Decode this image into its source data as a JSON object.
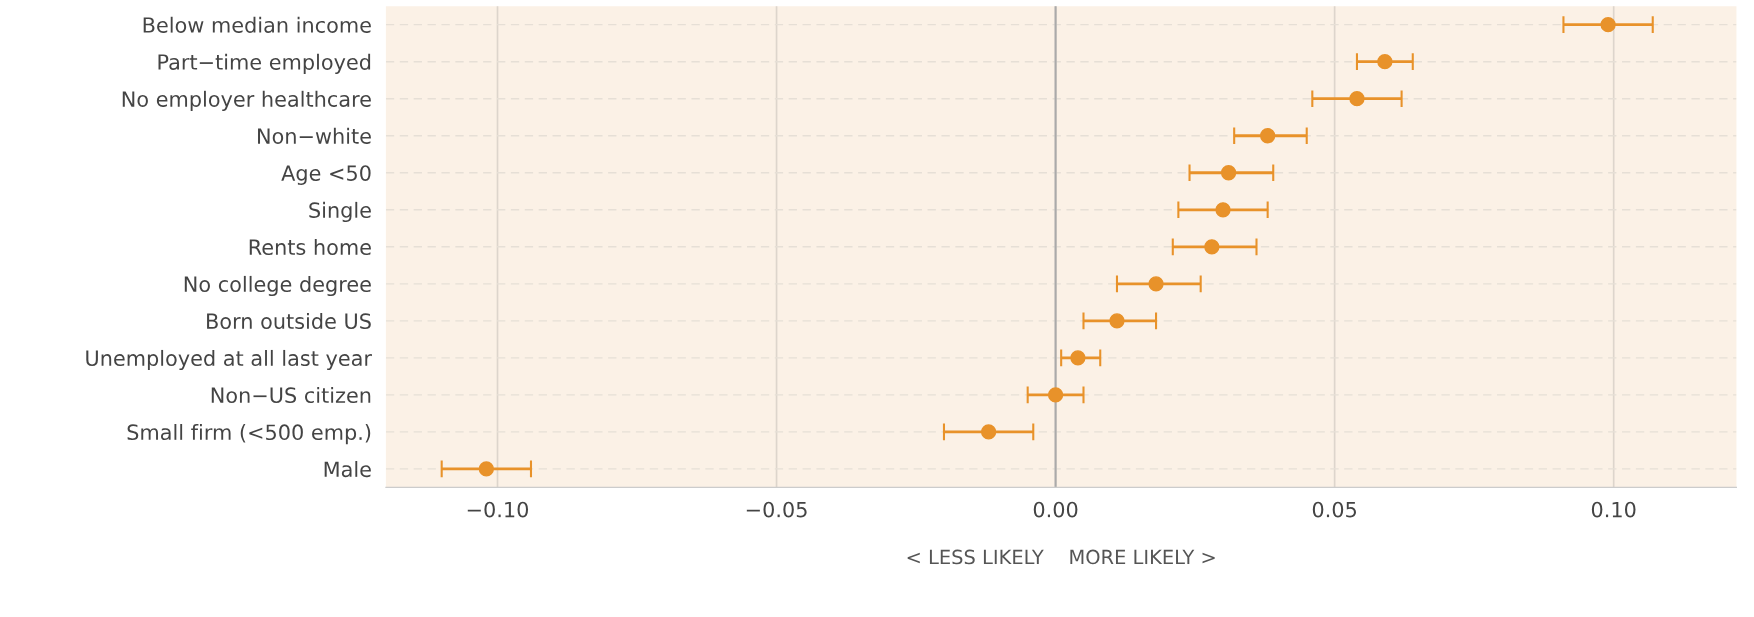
{
  "chart_data": {
    "type": "scatter",
    "xlabel": "< LESS LIKELY    MORE LIKELY >",
    "orientation": "horizontal",
    "categories": [
      "Below median income",
      "Part−time employed",
      "No employer healthcare",
      "Non−white",
      "Age <50",
      "Single",
      "Rents home",
      "No college degree",
      "Born outside US",
      "Unemployed at all last year",
      "Non−US citizen",
      "Small firm (<500 emp.)",
      "Male"
    ],
    "series": [
      {
        "color": "#e8922a",
        "values": [
          0.099,
          0.059,
          0.054,
          0.038,
          0.031,
          0.03,
          0.028,
          0.018,
          0.011,
          0.004,
          0.0,
          -0.012,
          -0.102
        ],
        "errors": [
          [
            0.091,
            0.107
          ],
          [
            0.054,
            0.064
          ],
          [
            0.046,
            0.062
          ],
          [
            0.032,
            0.045
          ],
          [
            0.024,
            0.039
          ],
          [
            0.022,
            0.038
          ],
          [
            0.021,
            0.036
          ],
          [
            0.011,
            0.026
          ],
          [
            0.005,
            0.018
          ],
          [
            0.001,
            0.008
          ],
          [
            -0.005,
            0.005
          ],
          [
            -0.02,
            -0.004
          ],
          [
            -0.11,
            -0.094
          ]
        ]
      }
    ],
    "xlim": [
      -0.12,
      0.122
    ],
    "xticks": [
      {
        "value": -0.1,
        "label": "−0.10"
      },
      {
        "value": -0.05,
        "label": "−0.05"
      },
      {
        "value": 0,
        "label": "0.00"
      },
      {
        "value": 0.05,
        "label": "0.05"
      },
      {
        "value": 0.1,
        "label": "0.10"
      }
    ],
    "ref_lines": [
      {
        "axis": "x",
        "value": 0,
        "color": "#aaaaaa"
      }
    ],
    "grid": true,
    "marker": "circle",
    "legend": false
  }
}
